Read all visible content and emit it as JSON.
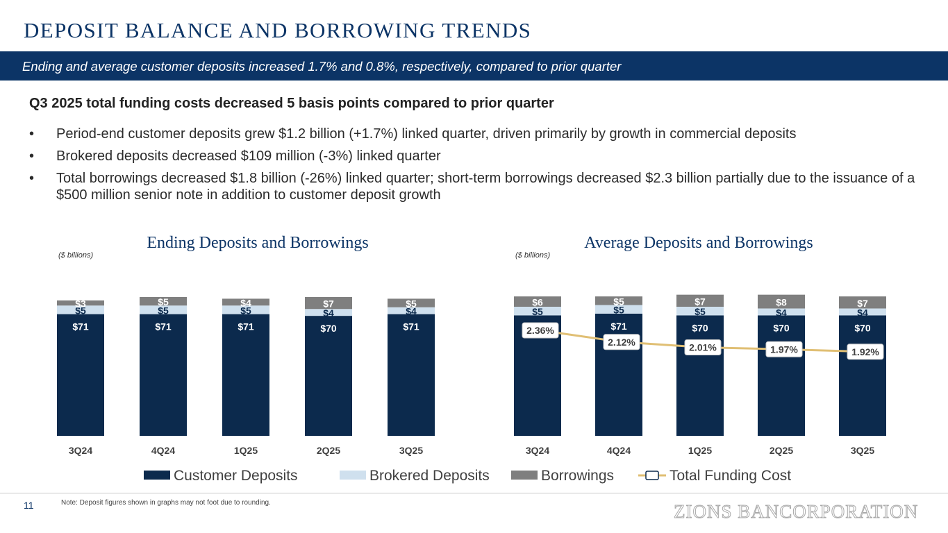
{
  "title": "DEPOSIT BALANCE AND BORROWING TRENDS",
  "banner": "Ending and average customer deposits increased 1.7% and 0.8%, respectively, compared to prior quarter",
  "headline": "Q3 2025 total funding costs decreased 5 basis points compared to prior quarter",
  "bullets": [
    "Period-end customer deposits grew $1.2 billion (+1.7%) linked quarter, driven primarily by growth in commercial deposits",
    "Brokered deposits decreased $109 million (-3%) linked quarter",
    "Total borrowings decreased $1.8 billion (-26%) linked quarter; short-term borrowings decreased $2.3 billion partially due to the issuance of a $500 million senior note in addition to customer deposit growth"
  ],
  "bullet_symbol": "•",
  "footer": {
    "page_number": "11",
    "note": "Note: Deposit figures shown in graphs may not foot due to rounding.",
    "logo": "ZIONS BANCORPORATION"
  },
  "colors": {
    "navy": "#0c3466",
    "customer_deposits": "#0c2a4d",
    "brokered_deposits": "#cfe0ee",
    "borrowings": "#7f7f7f",
    "funding_cost_line": "#e0bf74"
  },
  "legend": {
    "items": [
      "Customer Deposits",
      "Brokered Deposits",
      "Borrowings",
      "Total Funding Cost"
    ]
  },
  "chart_data": [
    {
      "type": "bar",
      "stacked": true,
      "title": "Ending Deposits and Borrowings",
      "unit_label": "($ billions)",
      "categories": [
        "3Q24",
        "4Q24",
        "1Q25",
        "2Q25",
        "3Q25"
      ],
      "series": [
        {
          "name": "Customer Deposits",
          "values": [
            71,
            71,
            71,
            70,
            71
          ],
          "labels": [
            "$71",
            "$71",
            "$71",
            "$70",
            "$71"
          ]
        },
        {
          "name": "Brokered Deposits",
          "values": [
            5,
            5,
            5,
            4,
            4
          ],
          "labels": [
            "$5",
            "$5",
            "$5",
            "$4",
            "$4"
          ]
        },
        {
          "name": "Borrowings",
          "values": [
            3,
            5,
            4,
            7,
            5
          ],
          "labels": [
            "$3",
            "$5",
            "$4",
            "$7",
            "$5"
          ]
        }
      ]
    },
    {
      "type": "bar",
      "stacked": true,
      "title": "Average Deposits and Borrowings",
      "unit_label": "($ billions)",
      "categories": [
        "3Q24",
        "4Q24",
        "1Q25",
        "2Q25",
        "3Q25"
      ],
      "series": [
        {
          "name": "Customer Deposits",
          "values": [
            70,
            71,
            70,
            70,
            70
          ],
          "labels": [
            "$70",
            "$71",
            "$70",
            "$70",
            "$70"
          ]
        },
        {
          "name": "Brokered Deposits",
          "values": [
            5,
            5,
            5,
            4,
            4
          ],
          "labels": [
            "$5",
            "$5",
            "$5",
            "$4",
            "$4"
          ]
        },
        {
          "name": "Borrowings",
          "values": [
            6,
            5,
            7,
            8,
            7
          ],
          "labels": [
            "$6",
            "$5",
            "$7",
            "$8",
            "$7"
          ]
        }
      ],
      "line": {
        "name": "Total Funding Cost",
        "values": [
          2.36,
          2.12,
          2.01,
          1.97,
          1.92
        ],
        "labels": [
          "2.36%",
          "2.12%",
          "2.01%",
          "1.97%",
          "1.92%"
        ]
      }
    }
  ]
}
